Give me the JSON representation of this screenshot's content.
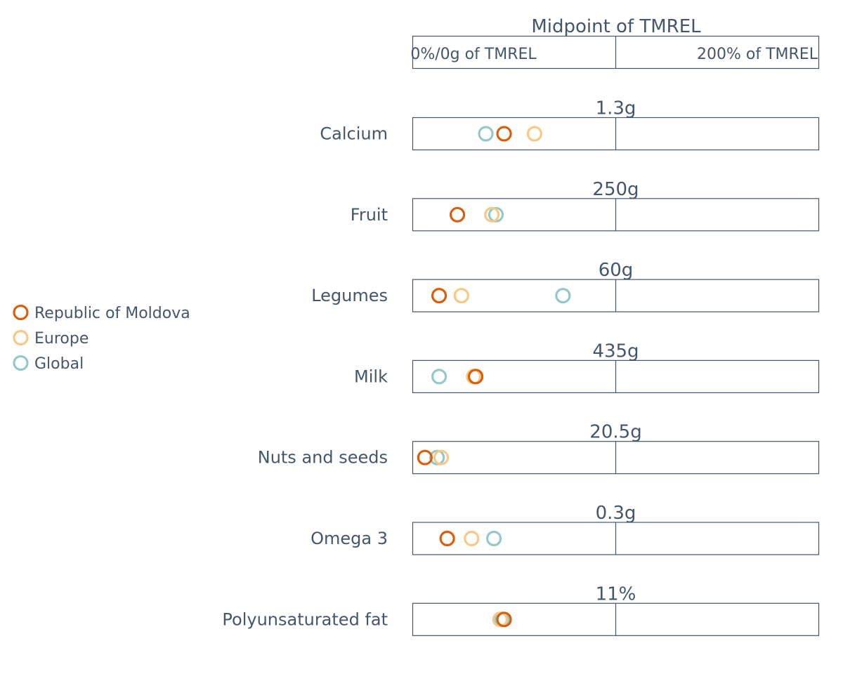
{
  "chart_data": {
    "type": "dot",
    "header": {
      "midpoint_label": "Midpoint of TMREL",
      "left_label": "0%/0g of TMREL",
      "right_label": "200% of TMREL"
    },
    "scale": {
      "unit": "percent of TMREL",
      "min": 0,
      "max": 200,
      "midpoint": 100
    },
    "series": [
      {
        "name": "Republic of Moldova",
        "color": "#d95f0e"
      },
      {
        "name": "Europe",
        "color": "#f6c987"
      },
      {
        "name": "Global",
        "color": "#96c8c8"
      }
    ],
    "categories": [
      {
        "label": "Calcium",
        "midpoint": "1.3g",
        "values": [
          45,
          60,
          36
        ]
      },
      {
        "label": "Fruit",
        "midpoint": "250g",
        "values": [
          22,
          39,
          41
        ]
      },
      {
        "label": "Legumes",
        "midpoint": "60g",
        "values": [
          13,
          24,
          74
        ]
      },
      {
        "label": "Milk",
        "midpoint": "435g",
        "values": [
          31,
          30,
          13
        ]
      },
      {
        "label": "Nuts and seeds",
        "midpoint": "20.5g",
        "values": [
          6,
          14,
          12
        ]
      },
      {
        "label": "Omega 3",
        "midpoint": "0.3g",
        "values": [
          17,
          29,
          40
        ]
      },
      {
        "label": "Polyunsaturated fat",
        "midpoint": "11%",
        "values": [
          45,
          43,
          44
        ]
      }
    ]
  }
}
